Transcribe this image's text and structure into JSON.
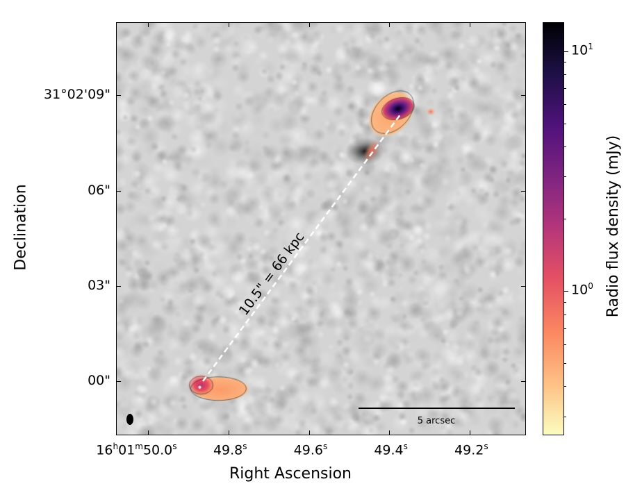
{
  "chart_data": {
    "type": "heatmap",
    "title": "",
    "xlabel": "Right Ascension",
    "ylabel": "Declination",
    "x_ticks": [
      {
        "main": "16",
        "h": "h",
        "m_val": "01",
        "m": "m",
        "s_val": "50.0",
        "s": "s",
        "value_s": 50.0
      },
      {
        "main": "49.8",
        "s": "s",
        "value_s": 49.8
      },
      {
        "main": "49.6",
        "s": "s",
        "value_s": 49.6
      },
      {
        "main": "49.4",
        "s": "s",
        "value_s": 49.4
      },
      {
        "main": "49.2",
        "s": "s",
        "value_s": 49.2
      }
    ],
    "y_ticks": [
      {
        "label": "31°02'09\"",
        "value_arcsec": 9
      },
      {
        "label": "06\"",
        "value_arcsec": 6
      },
      {
        "label": "03\"",
        "value_arcsec": 3
      },
      {
        "label": "00\"",
        "value_arcsec": 0
      }
    ],
    "xlim_s": [
      50.08,
      49.06
    ],
    "ylim_arcsec": [
      -1.7,
      11.3
    ],
    "colorbar": {
      "label": "Radio flux density (mJy)",
      "scale": "log",
      "range_mJy": [
        0.25,
        13.2
      ],
      "ticks": [
        {
          "label": "10",
          "exp": "1",
          "value": 10
        },
        {
          "label": "10",
          "exp": "0",
          "value": 1
        }
      ],
      "colormap": "magma_r"
    },
    "annotations": {
      "separation": "10.5\" = 66 kpc",
      "scale_bar": "5 arcsec"
    },
    "sources": [
      {
        "name": "northern source",
        "ra_s": 49.38,
        "dec_arcsec": 8.6,
        "peak_mJy": 13
      },
      {
        "name": "southern source",
        "ra_s": 49.87,
        "dec_arcsec": -0.1,
        "peak_mJy": 1.5
      }
    ]
  }
}
